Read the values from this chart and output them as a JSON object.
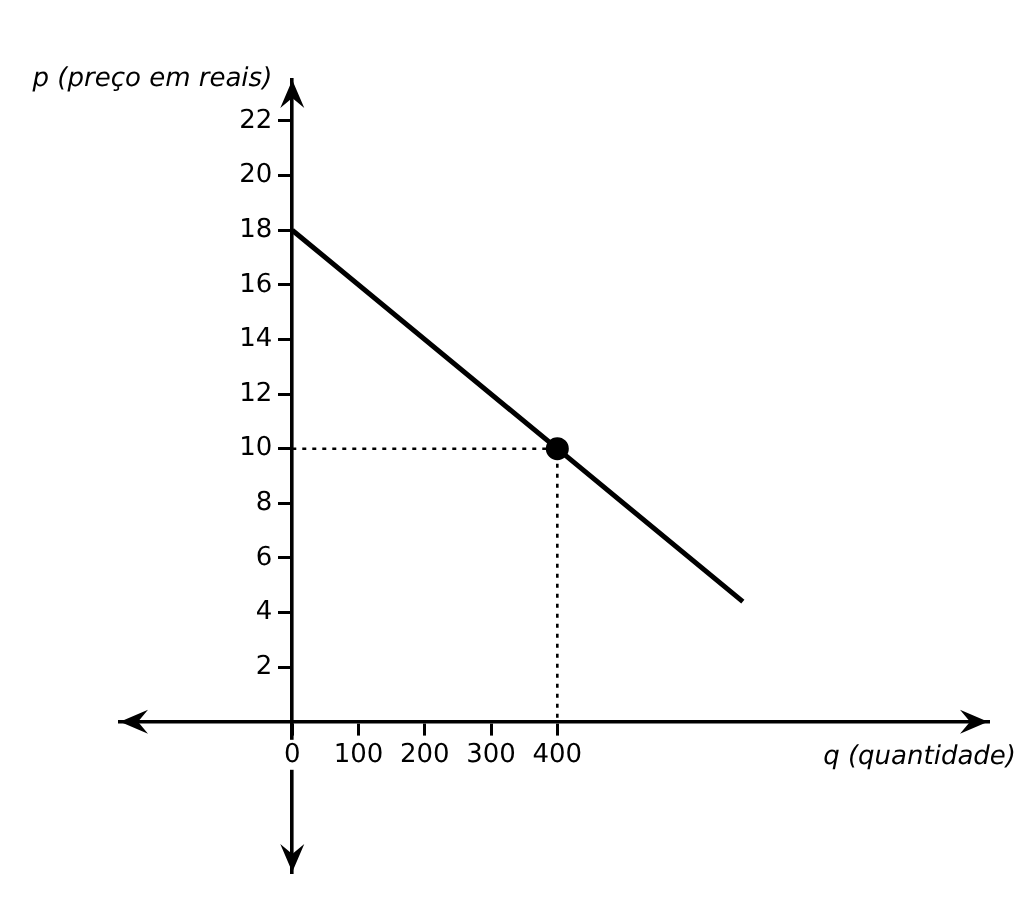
{
  "chart_data": {
    "type": "line",
    "xlabel": "q (quantidade)",
    "ylabel": "p (preço em reais)",
    "xlim": [
      -260,
      1050
    ],
    "ylim": [
      -5.5,
      23.5
    ],
    "xticks": [
      0,
      100,
      200,
      300,
      400
    ],
    "yticks": [
      2,
      4,
      6,
      8,
      10,
      12,
      14,
      16,
      18,
      20,
      22
    ],
    "grid": false,
    "legend": false,
    "series": [
      {
        "type": "line",
        "color": "#000000",
        "x": [
          0,
          400,
          680
        ],
        "values": [
          18,
          10,
          4.4
        ],
        "marker": "none",
        "line_style": "solid"
      },
      {
        "type": "line",
        "color": "#000000",
        "x": [
          0,
          400,
          400
        ],
        "values": [
          10,
          10,
          0
        ],
        "marker": "none",
        "line_style": "dotted"
      },
      {
        "type": "scatter",
        "color": "#000000",
        "x": [
          400
        ],
        "values": [
          10
        ],
        "marker": "circle"
      }
    ]
  }
}
